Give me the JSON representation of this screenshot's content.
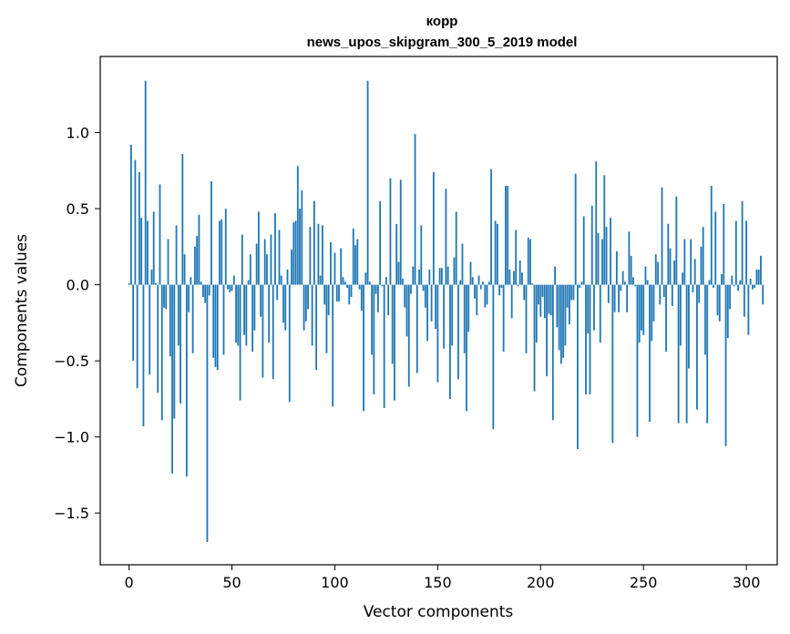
{
  "chart_data": {
    "type": "bar",
    "title": "корр",
    "subtitle": "news_upos_skipgram_300_5_2019 model",
    "xlabel": "Vector components",
    "ylabel": "Components values",
    "xlim": [
      -14,
      315
    ],
    "ylim": [
      -1.84,
      1.5
    ],
    "x_ticks": [
      0,
      50,
      100,
      150,
      200,
      250,
      300
    ],
    "x_tick_labels": [
      "0",
      "50",
      "100",
      "150",
      "200",
      "250",
      "300"
    ],
    "y_ticks": [
      1.0,
      0.5,
      0.0,
      -0.5,
      -1.0,
      -1.5
    ],
    "y_tick_labels": [
      "1.0",
      "0.5",
      "0.0",
      "−0.5",
      "−1.0",
      "−1.5"
    ],
    "grid": false,
    "legend": "none",
    "bar_color": "#1f77b4",
    "x_start": 0,
    "values": [
      0.01,
      0.92,
      -0.5,
      0.82,
      -0.68,
      0.74,
      0.44,
      -0.93,
      1.34,
      0.42,
      -0.59,
      0.1,
      0.48,
      0.01,
      -0.71,
      0.66,
      -0.89,
      -0.15,
      -0.16,
      0.3,
      -0.47,
      -1.24,
      -0.88,
      0.39,
      -0.4,
      -0.78,
      0.86,
      0.2,
      -1.26,
      -0.18,
      0.05,
      -0.45,
      0.25,
      0.32,
      0.46,
      0.02,
      -0.08,
      -0.12,
      -1.69,
      -0.07,
      0.68,
      -0.48,
      -0.54,
      -0.56,
      0.42,
      0.43,
      -0.46,
      0.5,
      -0.03,
      -0.05,
      -0.04,
      0.06,
      -0.38,
      -0.4,
      -0.76,
      0.33,
      -0.33,
      -0.4,
      0.03,
      0.2,
      -0.44,
      -0.3,
      0.27,
      0.48,
      -0.21,
      -0.61,
      0.3,
      0.2,
      -0.38,
      0.33,
      -0.62,
      0.47,
      -0.1,
      0.36,
      0.06,
      -0.25,
      -0.3,
      0.1,
      -0.77,
      0.23,
      0.41,
      0.42,
      0.78,
      0.5,
      0.62,
      -0.3,
      -0.24,
      -0.16,
      0.38,
      -0.4,
      0.55,
      -0.56,
      0.4,
      0.06,
      0.39,
      -0.13,
      -0.45,
      -0.2,
      0.28,
      -0.8,
      0.21,
      -0.11,
      -0.11,
      0.24,
      0.05,
      0.02,
      -0.02,
      -0.13,
      -0.08,
      0.37,
      0.26,
      0.3,
      -0.03,
      -0.17,
      -0.83,
      0.08,
      1.34,
      0.02,
      -0.46,
      -0.72,
      -0.06,
      -0.18,
      0.55,
      -0.01,
      -0.81,
      0.05,
      -0.2,
      0.7,
      -0.52,
      -0.76,
      0.4,
      0.15,
      0.69,
      0.04,
      -0.15,
      -0.34,
      -0.67,
      -0.06,
      0.12,
      0.99,
      -0.58,
      0.1,
      0.39,
      -0.04,
      -0.15,
      -0.37,
      0.1,
      -0.24,
      0.74,
      -0.29,
      -0.64,
      0.11,
      0.11,
      -0.42,
      0.63,
      0.12,
      -0.75,
      -0.4,
      0.18,
      0.48,
      -0.62,
      0.03,
      0.27,
      -0.45,
      -0.83,
      -0.31,
      0.15,
      0.05,
      -0.09,
      -0.2,
      0.06,
      -0.03,
      0.02,
      -0.15,
      -0.13,
      0.02,
      0.76,
      -0.95,
      0.42,
      0.4,
      -0.07,
      -0.02,
      -0.44,
      0.65,
      0.65,
      0.1,
      -0.22,
      0.09,
      0.36,
      -0.01,
      0.16,
      0.08,
      -0.1,
      -0.45,
      0.31,
      0.3,
      0.01,
      -0.7,
      -0.38,
      -0.13,
      -0.21,
      -0.08,
      -0.22,
      -0.6,
      -0.19,
      -0.2,
      -0.89,
      0.12,
      -0.28,
      -0.43,
      -0.52,
      -0.48,
      -0.4,
      -0.15,
      -0.26,
      -0.1,
      -0.1,
      0.73,
      -1.08,
      -0.02,
      0.02,
      0.45,
      -0.72,
      -0.32,
      -0.72,
      0.52,
      -0.3,
      0.81,
      0.34,
      -0.38,
      0.3,
      0.72,
      0.38,
      -0.12,
      0.44,
      -1.04,
      -0.18,
      0.22,
      -0.18,
      -0.04,
      0.09,
      0.02,
      -0.18,
      0.35,
      0.19,
      0.05,
      -0.01,
      -1.0,
      -0.38,
      -0.3,
      -0.33,
      0.12,
      0.03,
      -0.9,
      -0.37,
      -0.24,
      0.2,
      0.15,
      -0.13,
      0.64,
      -0.08,
      -0.44,
      0.4,
      0.24,
      -0.14,
      0.16,
      0.58,
      -0.91,
      -0.4,
      0.08,
      0.3,
      -0.91,
      -0.55,
      0.3,
      -0.05,
      0.17,
      -0.82,
      -0.12,
      0.25,
      0.38,
      -0.46,
      -0.91,
      0.03,
      0.65,
      -0.02,
      0.48,
      -0.2,
      -0.24,
      0.07,
      0.53,
      -1.06,
      -0.35,
      -0.16,
      0.06,
      -0.01,
      0.42,
      -0.04,
      0.03,
      0.55,
      -0.21,
      0.42,
      -0.33,
      0.04,
      -0.03,
      -0.02,
      0.1,
      0.1,
      0.19,
      -0.13
    ]
  }
}
